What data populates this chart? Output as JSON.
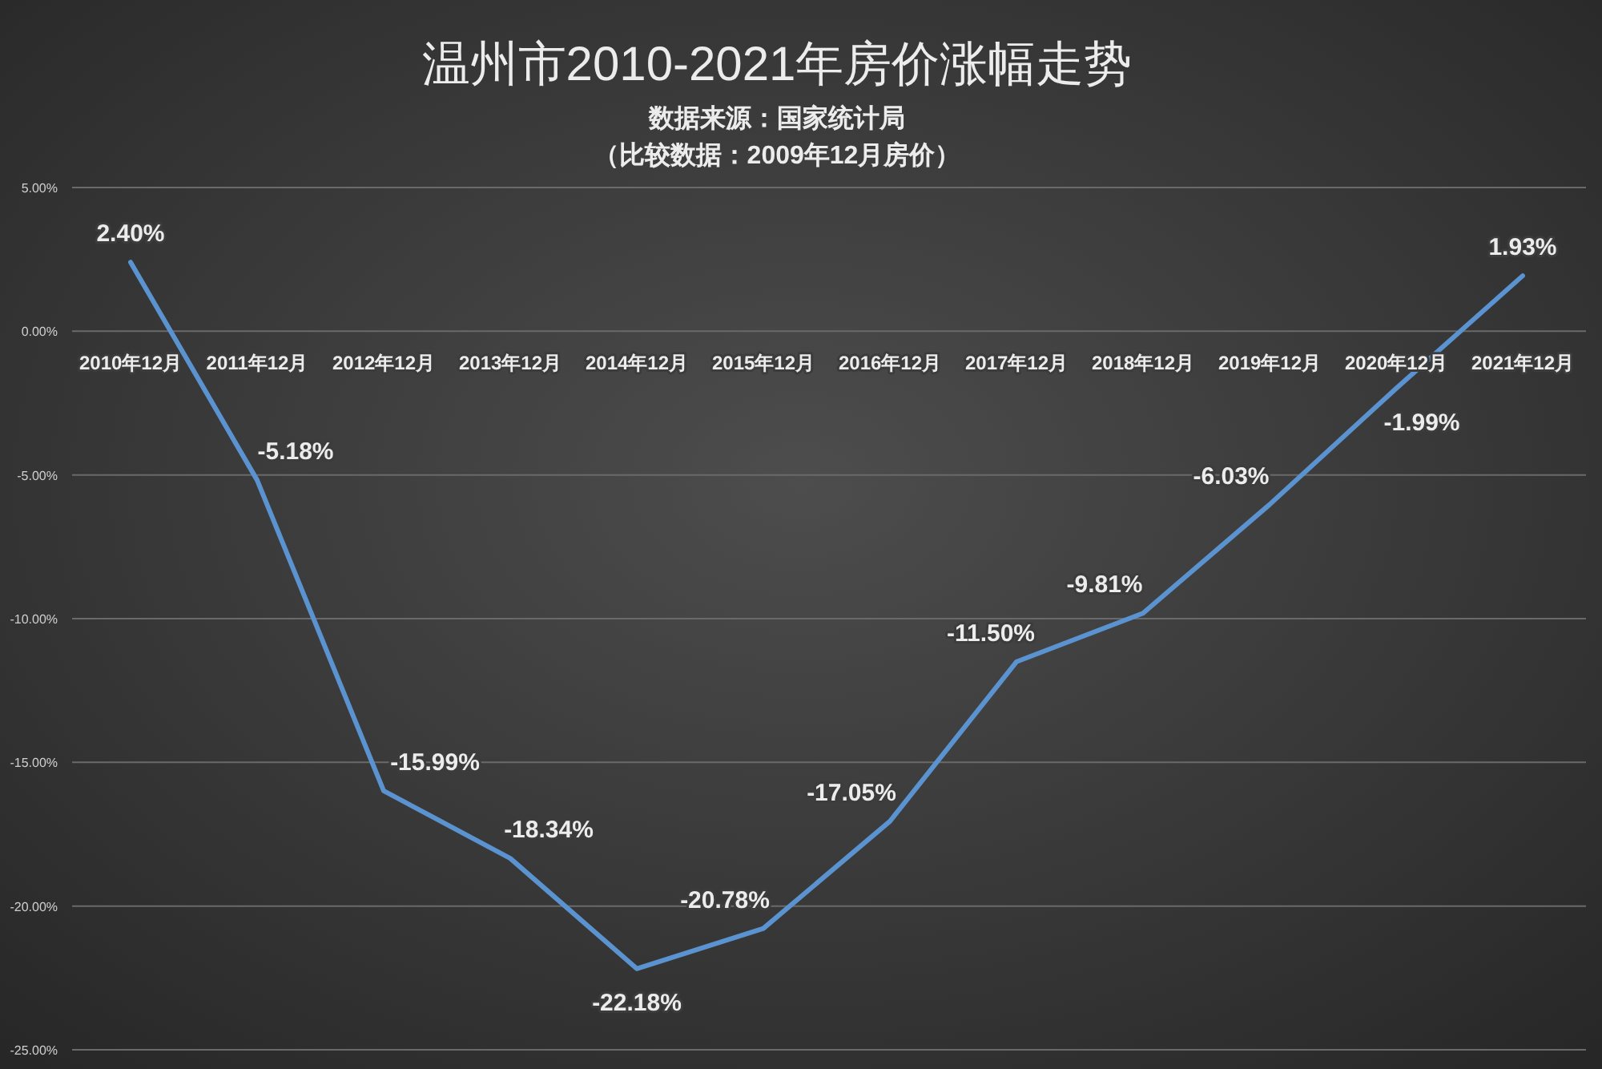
{
  "chart_data": {
    "type": "line",
    "title": "温州市2010-2021年房价涨幅走势",
    "subtitle": "数据来源：国家统计局",
    "annotations": [
      "（比较数据：2009年12月房价）"
    ],
    "categories": [
      "2010年12月",
      "2011年12月",
      "2012年12月",
      "2013年12月",
      "2014年12月",
      "2015年12月",
      "2016年12月",
      "2017年12月",
      "2018年12月",
      "2019年12月",
      "2020年12月",
      "2021年12月"
    ],
    "series": [
      {
        "color": "#5a93cf",
        "values": [
          2.4,
          -5.18,
          -15.99,
          -18.34,
          -22.18,
          -20.78,
          -17.05,
          -11.5,
          -9.81,
          -6.03,
          -1.99,
          1.93
        ],
        "value_labels": [
          "2.40%",
          "-5.18%",
          "-15.99%",
          "-18.34%",
          "-22.18%",
          "-20.78%",
          "-17.05%",
          "-11.50%",
          "-9.81%",
          "-6.03%",
          "-1.99%",
          "1.93%"
        ]
      }
    ],
    "ylim": [
      -25,
      5
    ],
    "yticks": [
      {
        "value": 5,
        "label": "5.00%"
      },
      {
        "value": 0,
        "label": "0.00%"
      },
      {
        "value": -5,
        "label": "-5.00%"
      },
      {
        "value": -10,
        "label": "-10.00%"
      },
      {
        "value": -15,
        "label": "-15.00%"
      },
      {
        "value": -20,
        "label": "-20.00%"
      },
      {
        "value": -25,
        "label": "-25.00%"
      }
    ],
    "grid": "y",
    "line_style": "solid"
  }
}
